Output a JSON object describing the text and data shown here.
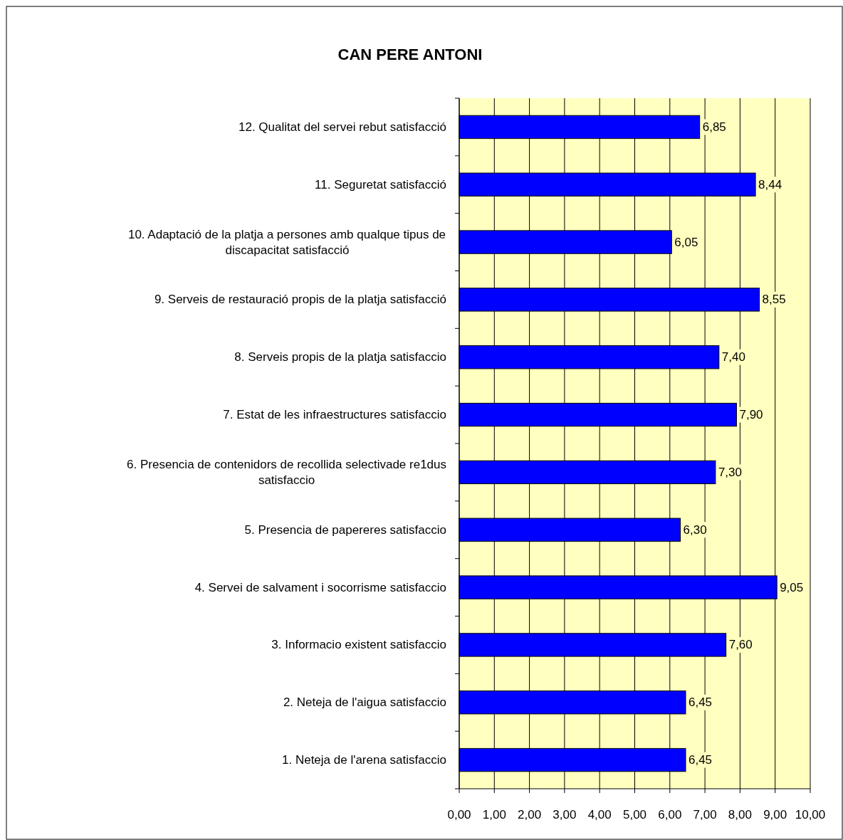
{
  "chart_data": {
    "type": "bar",
    "orientation": "horizontal",
    "title": "CAN PERE ANTONI",
    "categories": [
      "12. Qualitat del servei rebut satisfacció",
      "11. Seguretat satisfacció",
      "10. Adaptació de la platja a persones amb qualque tipus de discapacitat  satisfacció",
      "9. Serveis de restauració propis de la platja satisfacció",
      "8. Serveis propis de la platja satisfaccio",
      "7. Estat de les infraestructures satisfaccio",
      "6. Presencia de contenidors de recollida selectivade re1dus satisfaccio",
      "5. Presencia de papereres satisfaccio",
      "4. Servei de salvament i socorrisme satisfaccio",
      "3. Informacio existent satisfaccio",
      "2. Neteja de l'aigua satisfaccio",
      "1. Neteja de l'arena satisfaccio"
    ],
    "values": [
      6.85,
      8.44,
      6.05,
      8.55,
      7.4,
      7.9,
      7.3,
      6.3,
      9.05,
      7.6,
      6.45,
      6.45
    ],
    "value_labels": [
      "6,85",
      "8,44",
      "6,05",
      "8,55",
      "7,40",
      "7,90",
      "7,30",
      "6,30",
      "9,05",
      "7,60",
      "6,45",
      "6,45"
    ],
    "color": "#0000ff",
    "xlim": [
      0,
      10
    ],
    "xticks": [
      {
        "value": 0,
        "label": "0,00"
      },
      {
        "value": 1,
        "label": "1,00"
      },
      {
        "value": 2,
        "label": "2,00"
      },
      {
        "value": 3,
        "label": "3,00"
      },
      {
        "value": 4,
        "label": "4,00"
      },
      {
        "value": 5,
        "label": "5,00"
      },
      {
        "value": 6,
        "label": "6,00"
      },
      {
        "value": 7,
        "label": "7,00"
      },
      {
        "value": 8,
        "label": "8,00"
      },
      {
        "value": 9,
        "label": "9,00"
      },
      {
        "value": 10,
        "label": "10,00"
      }
    ],
    "grid": "x"
  }
}
